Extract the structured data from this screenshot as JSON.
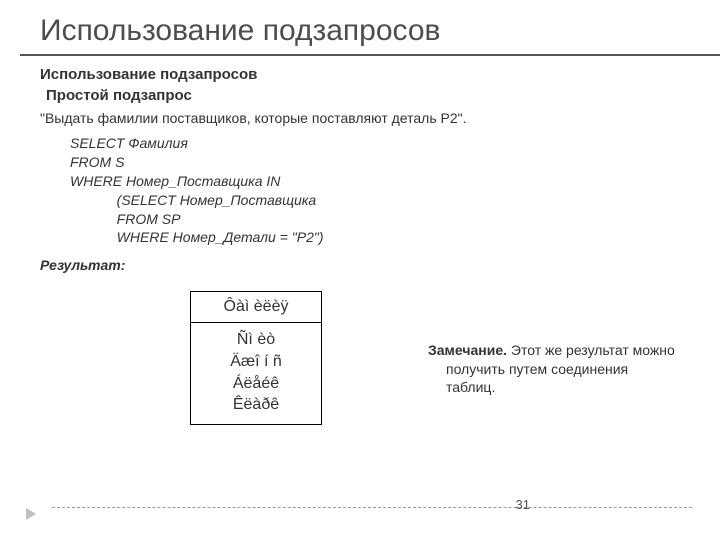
{
  "title": "Использование подзапросов",
  "section": "Использование подзапросов",
  "subsection": "Простой подзапрос",
  "task": "\"Выдать фамилии поставщиков, которые поставляют деталь P2\".",
  "sql": {
    "l1": "SELECT Фамилия",
    "l2": "FROM S",
    "l3": "WHERE Номер_Поставщика IN",
    "l4": "            (SELECT Номер_Поставщика",
    "l5": "            FROM SP",
    "l6": "            WHERE Номер_Детали = \"P2\")"
  },
  "result_label": "Результат:",
  "table": {
    "header": "Ôàì èëèÿ",
    "rows": [
      "Ñì èò",
      "Äæî í ñ",
      "Áëåéê",
      "Êëàðê"
    ]
  },
  "note_bold": "Замечание.",
  "note_text": " Этот же результат можно получить путем соединения таблиц.",
  "page": "31",
  "colors": {
    "text": "#333333",
    "rule": "#555555",
    "border": "#000000",
    "dashed": "#999999",
    "arrow": "#bfbfbf",
    "bg": "#ffffff"
  },
  "fonts": {
    "title_size_pt": 30,
    "body_size_pt": 14,
    "table_size_pt": 16
  }
}
